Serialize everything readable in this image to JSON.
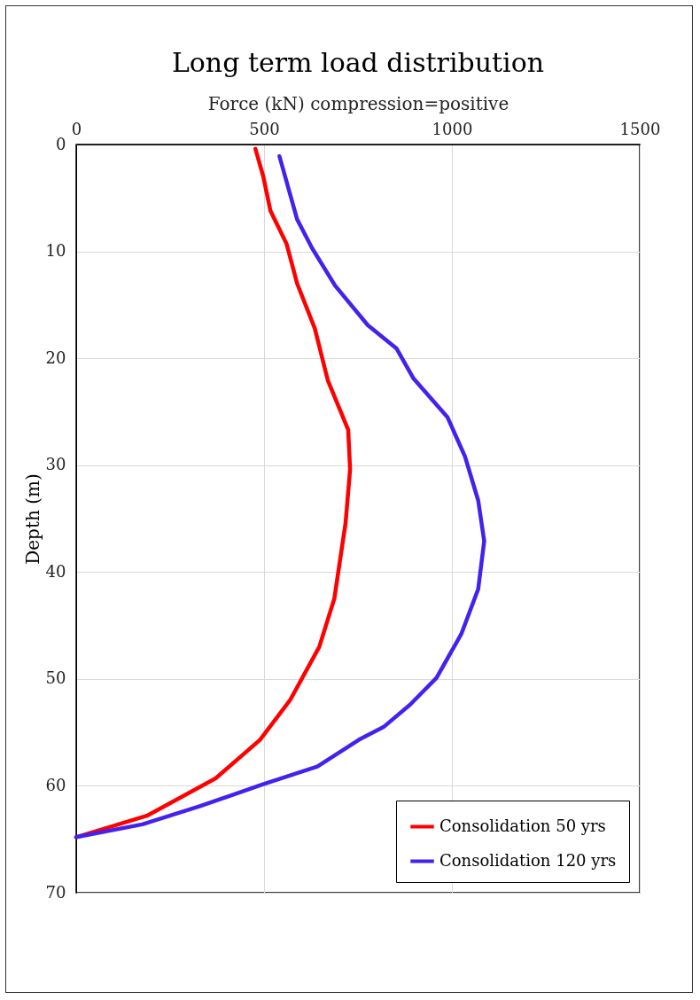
{
  "chart_data": {
    "type": "line",
    "title": "Long term load distribution",
    "xlabel": "Force (kN) compression=positive",
    "ylabel": "Depth (m)",
    "xlim": [
      0,
      1500
    ],
    "xticks": [
      0,
      500,
      1000,
      1500
    ],
    "ylim": [
      70,
      0
    ],
    "yticks": [
      0,
      10,
      20,
      30,
      40,
      50,
      60,
      70
    ],
    "grid": true,
    "legend": "bottom right",
    "line_style": "solid",
    "series": [
      {
        "name": "Consolidation 50 yrs",
        "color": "#ff0000",
        "x": [
          477,
          498,
          517,
          560,
          588,
          635,
          670,
          724,
          729,
          717,
          687,
          647,
          569,
          489,
          371,
          188,
          0
        ],
        "values": [
          0.4,
          3,
          6.2,
          9.3,
          13,
          17.2,
          22.1,
          26.7,
          30.4,
          35.4,
          42.5,
          47,
          52,
          55.7,
          59.3,
          62.8,
          64.8
        ]
      },
      {
        "name": "Consolidation 120 yrs",
        "color": "#4422ee",
        "x": [
          541,
          588,
          628,
          689,
          776,
          853,
          898,
          988,
          1035,
          1070,
          1086,
          1070,
          1025,
          959,
          889,
          818,
          752,
          642,
          494,
          329,
          176,
          0
        ],
        "values": [
          1.1,
          7,
          9.7,
          13.2,
          16.9,
          19.1,
          21.9,
          25.5,
          29.2,
          33.3,
          37.1,
          41.6,
          45.8,
          49.9,
          52.4,
          54.5,
          55.7,
          58.2,
          59.9,
          61.9,
          63.6,
          64.8
        ]
      }
    ]
  }
}
